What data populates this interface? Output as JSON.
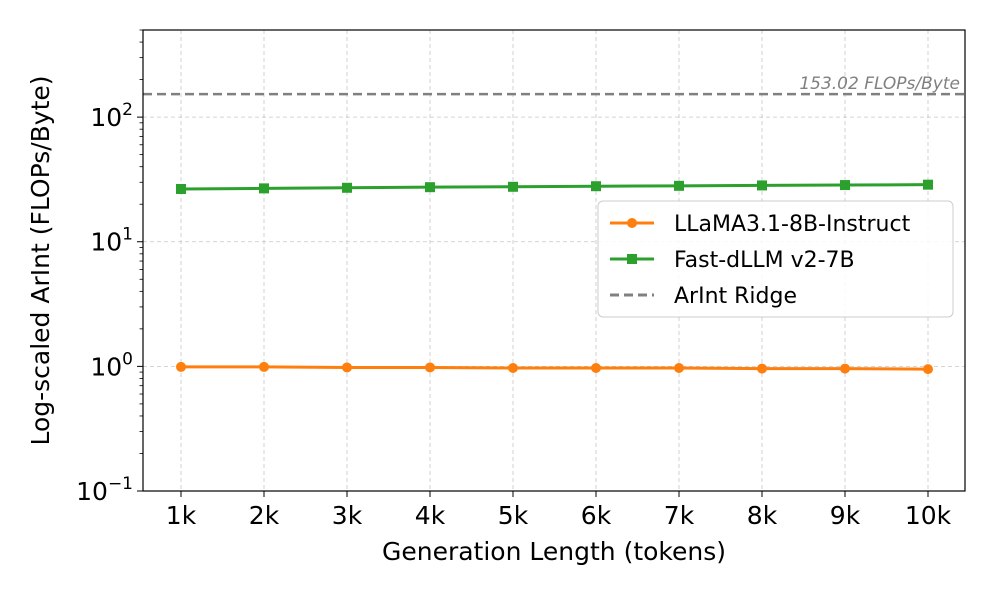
{
  "chart_data": {
    "type": "line",
    "xlabel": "Generation Length (tokens)",
    "ylabel": "Log-scaled ArInt (FLOPs/Byte)",
    "yscale": "log",
    "ylim": [
      0.1,
      500
    ],
    "yticks": [
      {
        "value": 0.1,
        "base": "10",
        "exp": "−1"
      },
      {
        "value": 1,
        "base": "10",
        "exp": "0"
      },
      {
        "value": 10,
        "base": "10",
        "exp": "1"
      },
      {
        "value": 100,
        "base": "10",
        "exp": "2"
      }
    ],
    "categories": [
      "1k",
      "2k",
      "3k",
      "4k",
      "5k",
      "6k",
      "7k",
      "8k",
      "9k",
      "10k"
    ],
    "grid": true,
    "legend_position": "center-right",
    "series": [
      {
        "name": "LLaMA3.1-8B-Instruct",
        "color": "#ff7f0e",
        "marker": "circle",
        "values": [
          0.99,
          0.99,
          0.98,
          0.98,
          0.97,
          0.97,
          0.97,
          0.96,
          0.96,
          0.95
        ]
      },
      {
        "name": "Fast-dLLM v2-7B",
        "color": "#2ca02c",
        "marker": "square",
        "values": [
          26.5,
          26.8,
          27.1,
          27.4,
          27.6,
          27.9,
          28.1,
          28.3,
          28.5,
          28.7
        ]
      }
    ],
    "reference_line": {
      "name": "ArInt Ridge",
      "value": 153.02,
      "label": "153.02 FLOPs/Byte",
      "color": "#808080",
      "style": "dashed"
    }
  }
}
